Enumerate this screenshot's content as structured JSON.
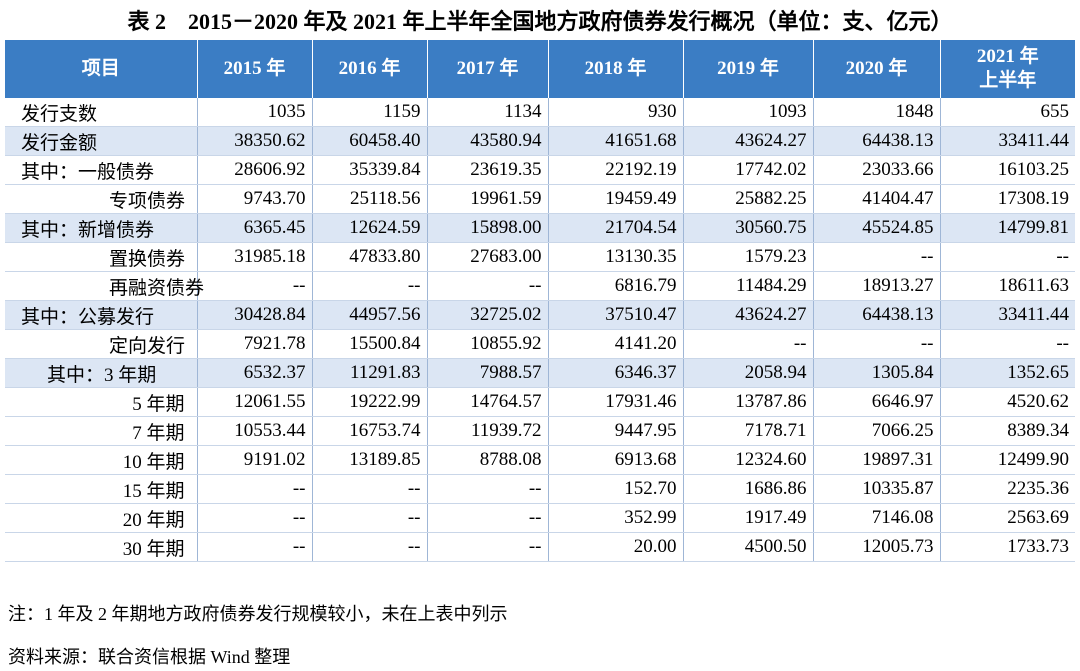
{
  "title": "表 2　2015－2020 年及 2021 年上半年全国地方政府债券发行概况（单位：支、亿元）",
  "table": {
    "header": [
      "项目",
      "2015 年",
      "2016 年",
      "2017 年",
      "2018 年",
      "2019 年",
      "2020 年",
      "2021 年\n上半年"
    ],
    "rows": [
      [
        "发行支数",
        "1035",
        "1159",
        "1134",
        "930",
        "1093",
        "1848",
        "655"
      ],
      [
        "发行金额",
        "38350.62",
        "60458.40",
        "43580.94",
        "41651.68",
        "43624.27",
        "64438.13",
        "33411.44"
      ],
      [
        "其中：一般债券",
        "28606.92",
        "35339.84",
        "23619.35",
        "22192.19",
        "17742.02",
        "23033.66",
        "16103.25"
      ],
      [
        "专项债券",
        "9743.70",
        "25118.56",
        "19961.59",
        "19459.49",
        "25882.25",
        "41404.47",
        "17308.19"
      ],
      [
        "其中：新增债券",
        "6365.45",
        "12624.59",
        "15898.00",
        "21704.54",
        "30560.75",
        "45524.85",
        "14799.81"
      ],
      [
        "置换债券",
        "31985.18",
        "47833.80",
        "27683.00",
        "13130.35",
        "1579.23",
        "--",
        "--"
      ],
      [
        "再融资债券",
        "--",
        "--",
        "--",
        "6816.79",
        "11484.29",
        "18913.27",
        "18611.63"
      ],
      [
        "其中：公募发行",
        "30428.84",
        "44957.56",
        "32725.02",
        "37510.47",
        "43624.27",
        "64438.13",
        "33411.44"
      ],
      [
        "定向发行",
        "7921.78",
        "15500.84",
        "10855.92",
        "4141.20",
        "--",
        "--",
        "--"
      ],
      [
        "其中：3 年期",
        "6532.37",
        "11291.83",
        "7988.57",
        "6346.37",
        "2058.94",
        "1305.84",
        "1352.65"
      ],
      [
        "5 年期",
        "12061.55",
        "19222.99",
        "14764.57",
        "17931.46",
        "13787.86",
        "6646.97",
        "4520.62"
      ],
      [
        "7 年期",
        "10553.44",
        "16753.74",
        "11939.72",
        "9447.95",
        "7178.71",
        "7066.25",
        "8389.34"
      ],
      [
        "10 年期",
        "9191.02",
        "13189.85",
        "8788.08",
        "6913.68",
        "12324.60",
        "19897.31",
        "12499.90"
      ],
      [
        "15 年期",
        "--",
        "--",
        "--",
        "152.70",
        "1686.86",
        "10335.87",
        "2235.36"
      ],
      [
        "20 年期",
        "--",
        "--",
        "--",
        "352.99",
        "1917.49",
        "7146.08",
        "2563.69"
      ],
      [
        "30 年期",
        "--",
        "--",
        "--",
        "20.00",
        "4500.50",
        "12005.73",
        "1733.73"
      ]
    ]
  },
  "notes": [
    "注：1 年及 2 年期地方政府债券发行规模较小，未在上表中列示",
    "资料来源：联合资信根据 Wind 整理"
  ]
}
